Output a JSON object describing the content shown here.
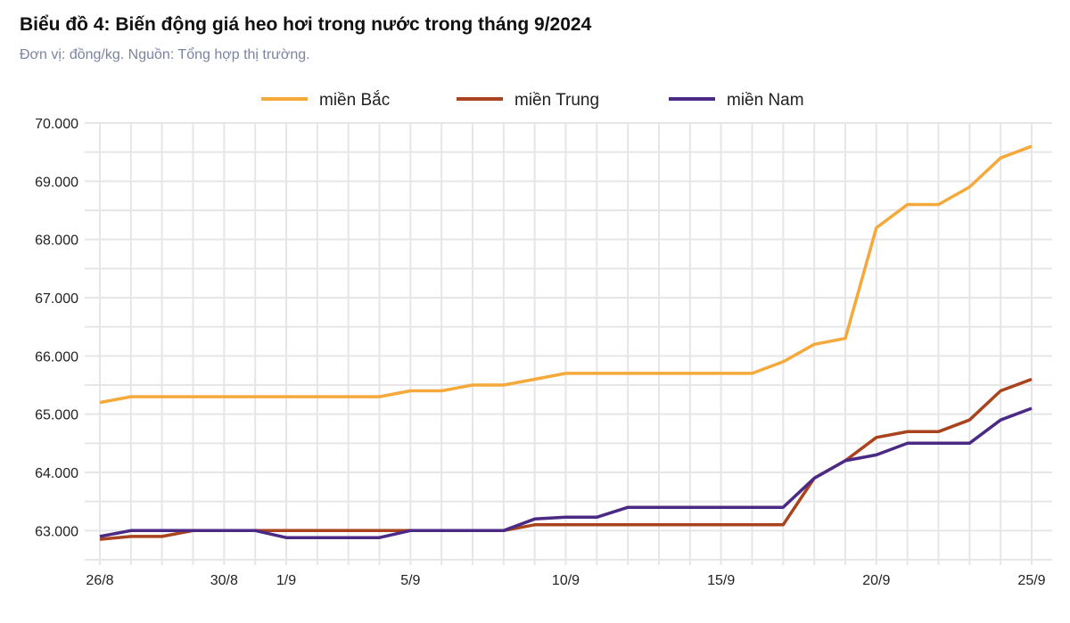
{
  "title": "Biểu đồ 4: Biến động giá heo hơi trong nước trong tháng 9/2024",
  "subtitle": "Đơn vị: đồng/kg. Nguồn: Tổng hợp thị trường.",
  "chart_data": {
    "type": "line",
    "title": "Biểu đồ 4: Biến động giá heo hơi trong nước trong tháng 9/2024",
    "xlabel": "",
    "ylabel": "",
    "x": [
      "26/8",
      "27/8",
      "28/8",
      "29/8",
      "30/8",
      "31/8",
      "1/9",
      "2/9",
      "3/9",
      "4/9",
      "5/9",
      "6/9",
      "7/9",
      "8/9",
      "9/9",
      "10/9",
      "11/9",
      "12/9",
      "13/9",
      "14/9",
      "15/9",
      "16/9",
      "17/9",
      "18/9",
      "19/9",
      "20/9",
      "21/9",
      "22/9",
      "23/9",
      "24/9",
      "25/9"
    ],
    "x_tick_labels": [
      "26/8",
      "30/8",
      "1/9",
      "5/9",
      "10/9",
      "15/9",
      "20/9",
      "25/9"
    ],
    "y_tick_labels": [
      "63.000",
      "64.000",
      "65.000",
      "66.000",
      "67.000",
      "68.000",
      "69.000",
      "70.000"
    ],
    "ylim": [
      62500,
      70000
    ],
    "grid": true,
    "legend_position": "top",
    "series": [
      {
        "name": "miền Bắc",
        "color": "#F5A93B",
        "values": [
          65200,
          65300,
          65300,
          65300,
          65300,
          65300,
          65300,
          65300,
          65300,
          65300,
          65400,
          65400,
          65500,
          65500,
          65600,
          65700,
          65700,
          65700,
          65700,
          65700,
          65700,
          65700,
          65900,
          66200,
          66300,
          68200,
          68600,
          68600,
          68900,
          69400,
          69600
        ]
      },
      {
        "name": "miền Trung",
        "color": "#A9431E",
        "values": [
          62850,
          62900,
          62900,
          63000,
          63000,
          63000,
          63000,
          63000,
          63000,
          63000,
          63000,
          63000,
          63000,
          63000,
          63100,
          63100,
          63100,
          63100,
          63100,
          63100,
          63100,
          63100,
          63100,
          63900,
          64200,
          64600,
          64700,
          64700,
          64900,
          65400,
          65600
        ]
      },
      {
        "name": "miền Nam",
        "color": "#4B2A86",
        "values": [
          62900,
          63000,
          63000,
          63000,
          63000,
          63000,
          62880,
          62880,
          62880,
          62880,
          63000,
          63000,
          63000,
          63000,
          63200,
          63230,
          63230,
          63400,
          63400,
          63400,
          63400,
          63400,
          63400,
          63900,
          64200,
          64300,
          64500,
          64500,
          64500,
          64900,
          65100
        ]
      }
    ]
  }
}
